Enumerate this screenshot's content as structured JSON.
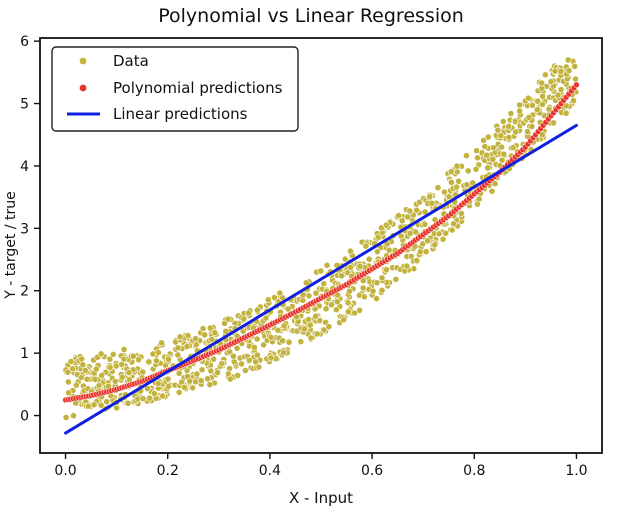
{
  "chart_data": {
    "type": "scatter",
    "title": "Polynomial vs Linear Regression",
    "xlabel": "X - Input",
    "ylabel": "Y - target / true",
    "xlim": [
      -0.05,
      1.05
    ],
    "ylim": [
      -0.6,
      6.05
    ],
    "x_ticks": [
      "0.0",
      "0.2",
      "0.4",
      "0.6",
      "0.8",
      "1.0"
    ],
    "x_tick_values": [
      0.0,
      0.2,
      0.4,
      0.6,
      0.8,
      1.0
    ],
    "y_ticks": [
      "0",
      "1",
      "2",
      "3",
      "4",
      "5",
      "6"
    ],
    "y_tick_values": [
      0,
      1,
      2,
      3,
      4,
      5,
      6
    ],
    "grid": false,
    "legend_position": "top-left",
    "legend": [
      "Data",
      "Polynomial predictions",
      "Linear predictions"
    ],
    "series": [
      {
        "name": "Data",
        "kind": "scatter",
        "color": "#c2b23e",
        "x": [
          0.0,
          0.05,
          0.1,
          0.15,
          0.2,
          0.25,
          0.3,
          0.35,
          0.4,
          0.45,
          0.5,
          0.55,
          0.6,
          0.65,
          0.7,
          0.75,
          0.8,
          0.85,
          0.9,
          0.95,
          1.0
        ],
        "y_low": [
          -0.05,
          0.08,
          0.12,
          0.2,
          0.3,
          0.4,
          0.52,
          0.65,
          0.85,
          1.05,
          1.3,
          1.55,
          1.8,
          2.1,
          2.5,
          2.9,
          3.3,
          3.7,
          4.1,
          4.6,
          5.0
        ],
        "y_high": [
          0.95,
          1.0,
          1.05,
          1.1,
          1.2,
          1.35,
          1.5,
          1.65,
          1.9,
          2.1,
          2.35,
          2.6,
          2.9,
          3.2,
          3.5,
          3.9,
          4.3,
          4.7,
          5.1,
          5.6,
          5.75
        ]
      },
      {
        "name": "Polynomial predictions",
        "kind": "points",
        "color": "#e8322a",
        "x": [
          0.0,
          0.05,
          0.1,
          0.15,
          0.2,
          0.25,
          0.3,
          0.35,
          0.4,
          0.45,
          0.5,
          0.55,
          0.6,
          0.65,
          0.7,
          0.75,
          0.8,
          0.85,
          0.9,
          0.95,
          1.0
        ],
        "y": [
          0.25,
          0.32,
          0.42,
          0.55,
          0.72,
          0.88,
          1.05,
          1.25,
          1.45,
          1.66,
          1.88,
          2.1,
          2.35,
          2.6,
          2.9,
          3.2,
          3.55,
          3.9,
          4.3,
          4.8,
          5.3
        ]
      },
      {
        "name": "Linear predictions",
        "kind": "line",
        "color": "#1020e0",
        "x": [
          0.0,
          1.0
        ],
        "y": [
          -0.28,
          4.65
        ]
      }
    ]
  }
}
